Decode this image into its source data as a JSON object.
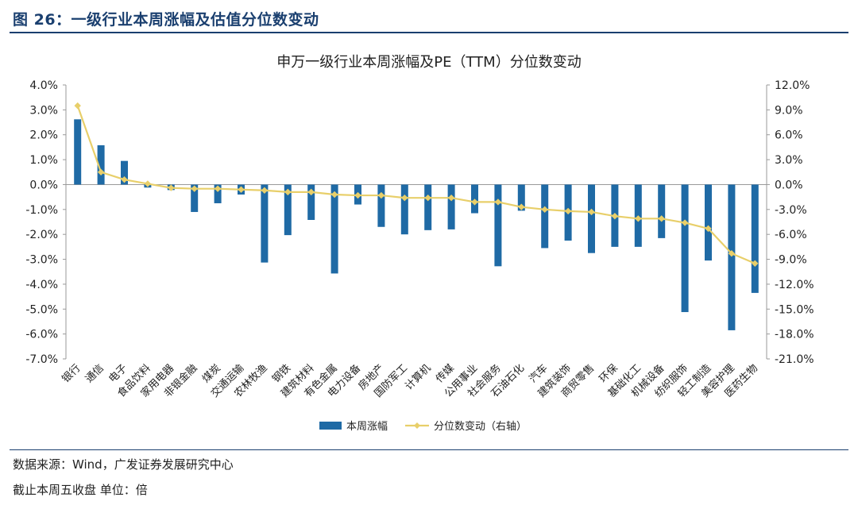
{
  "figure": {
    "title": "图 26：一级行业本周涨幅及估值分位数变动",
    "source": "数据来源：Wind，广发证券发展研究中心",
    "note": "截止本周五收盘  单位：倍"
  },
  "colors": {
    "bar": "#1f6aa5",
    "line": "#e8cf6a",
    "frame": "#1a3f6f"
  },
  "chart_data": {
    "type": "bar",
    "title": "申万一级行业本周涨幅及PE（TTM）分位数变动",
    "categories": [
      "银行",
      "通信",
      "电子",
      "食品饮料",
      "家用电器",
      "非银金融",
      "煤炭",
      "交通运输",
      "农林牧渔",
      "钢铁",
      "建筑材料",
      "有色金属",
      "电力设备",
      "房地产",
      "国防军工",
      "计算机",
      "传媒",
      "公用事业",
      "社会服务",
      "石油石化",
      "汽车",
      "建筑装饰",
      "商贸零售",
      "环保",
      "基础化工",
      "机械设备",
      "纺织服饰",
      "轻工制造",
      "美容护理",
      "医药生物"
    ],
    "series": [
      {
        "name": "本周涨幅",
        "type": "bar",
        "axis": "left",
        "values": [
          2.62,
          1.58,
          0.95,
          -0.12,
          -0.22,
          -1.1,
          -0.75,
          -0.4,
          -3.13,
          -2.03,
          -1.42,
          -3.57,
          -0.8,
          -1.7,
          -2.0,
          -1.83,
          -1.8,
          -1.15,
          -3.28,
          -1.05,
          -2.55,
          -2.25,
          -2.75,
          -2.5,
          -2.5,
          -2.15,
          -5.12,
          -3.05,
          -5.85,
          -4.35
        ]
      },
      {
        "name": "分位数变动（右轴）",
        "type": "line",
        "axis": "right",
        "values": [
          9.5,
          1.5,
          0.6,
          0.1,
          -0.4,
          -0.5,
          -0.5,
          -0.6,
          -0.7,
          -0.9,
          -0.9,
          -1.2,
          -1.3,
          -1.3,
          -1.6,
          -1.6,
          -1.6,
          -2.1,
          -2.1,
          -2.7,
          -3.0,
          -3.2,
          -3.3,
          -3.8,
          -4.1,
          -4.1,
          -4.6,
          -5.3,
          -8.3,
          -9.5
        ]
      }
    ],
    "ylim": [
      -7,
      4
    ],
    "y_ticks": [
      "4.0%",
      "3.0%",
      "2.0%",
      "1.0%",
      "0.0%",
      "-1.0%",
      "-2.0%",
      "-3.0%",
      "-4.0%",
      "-5.0%",
      "-6.0%",
      "-7.0%"
    ],
    "y2lim": [
      -21,
      12
    ],
    "y2_ticks": [
      "12.0%",
      "9.0%",
      "6.0%",
      "3.0%",
      "0.0%",
      "-3.0%",
      "-6.0%",
      "-9.0%",
      "-12.0%",
      "-15.0%",
      "-18.0%",
      "-21.0%"
    ],
    "grid": false,
    "legend_position": "bottom"
  }
}
